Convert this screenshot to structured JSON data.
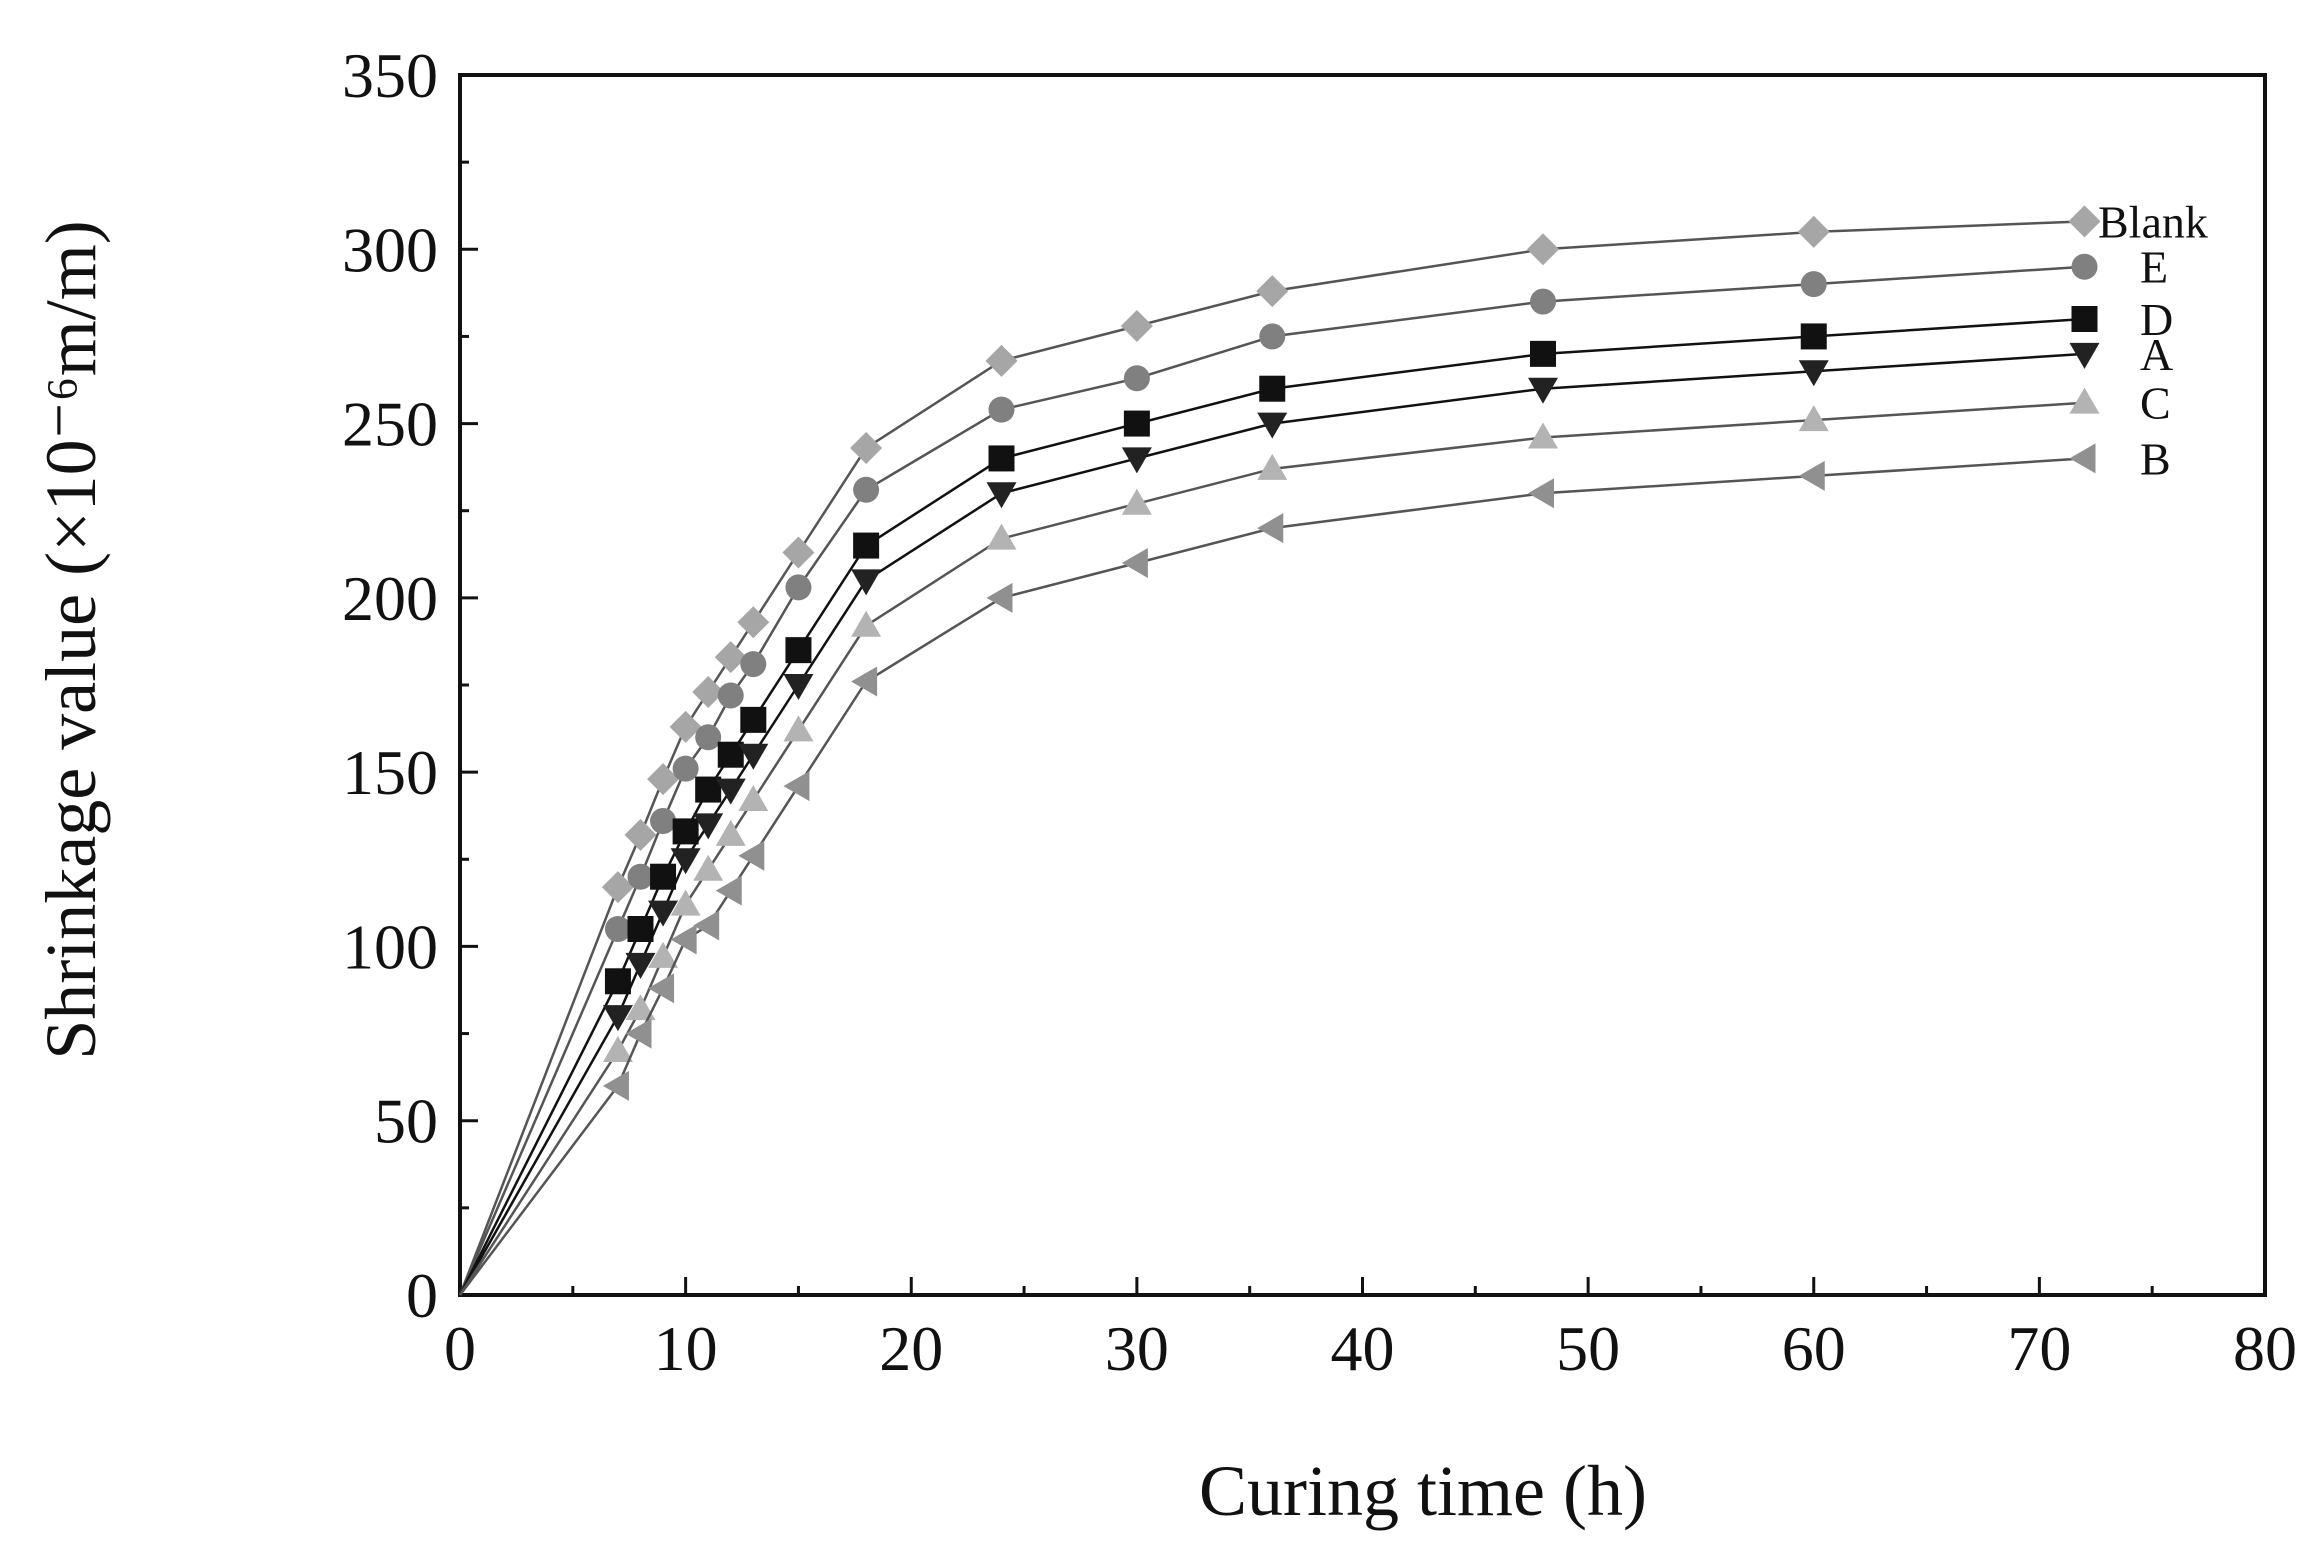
{
  "chart_data": {
    "type": "line",
    "title": "",
    "xlabel": "Curing time (h)",
    "ylabel": "Shrinkage value (×10⁻⁶m/m)",
    "xlim": [
      0,
      80
    ],
    "ylim": [
      0,
      350
    ],
    "xticks": [
      "0",
      "10",
      "20",
      "30",
      "40",
      "50",
      "60",
      "70",
      "80"
    ],
    "yticks": [
      "0",
      "50",
      "100",
      "150",
      "200",
      "250",
      "300",
      "350"
    ],
    "grid": false,
    "legend": "inline-right",
    "x": [
      0,
      7,
      8,
      9,
      10,
      11,
      12,
      13,
      15,
      18,
      24,
      30,
      36,
      48,
      60,
      72
    ],
    "series": [
      {
        "name": "Blank",
        "marker": "diamond",
        "color": "#a6a6a6",
        "values": [
          0,
          117,
          132,
          148,
          163,
          173,
          183,
          193,
          213,
          243,
          268,
          278,
          288,
          300,
          305,
          308
        ]
      },
      {
        "name": "E",
        "marker": "circle",
        "color": "#808080",
        "values": [
          0,
          105,
          120,
          136,
          151,
          160,
          172,
          181,
          203,
          231,
          254,
          263,
          275,
          285,
          290,
          295
        ]
      },
      {
        "name": "D",
        "marker": "square",
        "color": "#111111",
        "values": [
          0,
          90,
          105,
          120,
          133,
          145,
          155,
          165,
          185,
          215,
          240,
          250,
          260,
          270,
          275,
          280
        ]
      },
      {
        "name": "A",
        "marker": "triangle-down",
        "color": "#222222",
        "values": [
          0,
          80,
          95,
          110,
          125,
          135,
          145,
          155,
          175,
          205,
          230,
          240,
          250,
          260,
          265,
          270
        ]
      },
      {
        "name": "C",
        "marker": "triangle-up",
        "color": "#b3b3b3",
        "values": [
          0,
          70,
          82,
          97,
          112,
          122,
          132,
          142,
          162,
          192,
          217,
          227,
          237,
          246,
          251,
          256
        ]
      },
      {
        "name": "B",
        "marker": "triangle-left",
        "color": "#909090",
        "values": [
          0,
          60,
          75,
          88,
          102,
          106,
          116,
          126,
          146,
          176,
          200,
          210,
          220,
          230,
          235,
          240
        ]
      }
    ]
  }
}
